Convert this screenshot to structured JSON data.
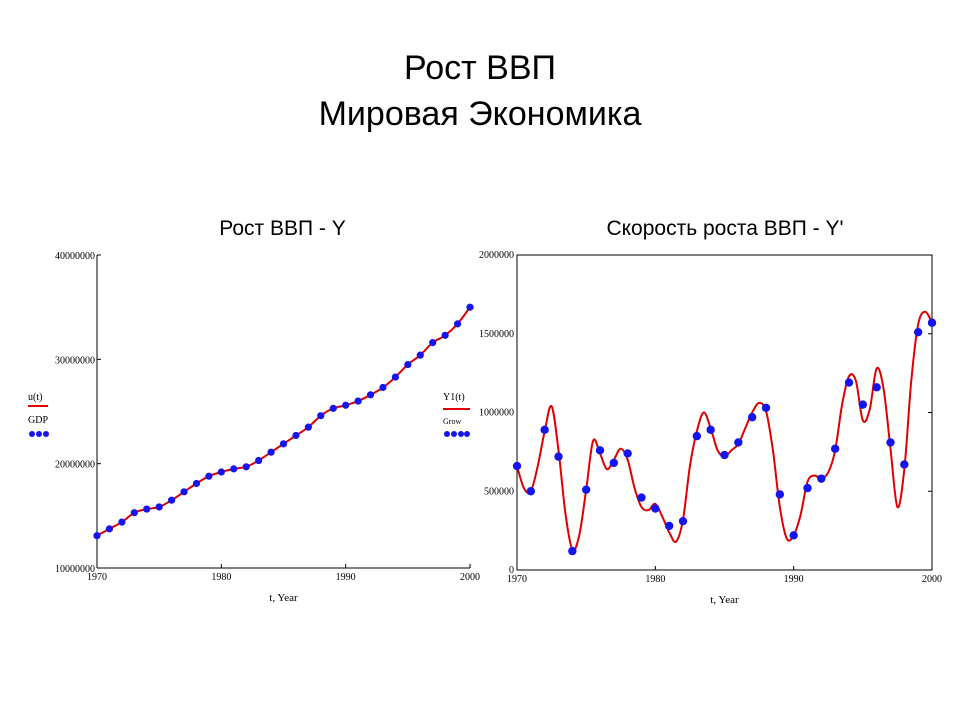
{
  "slide": {
    "title_line1": "Рост ВВП",
    "title_line2": "Мировая Экономика"
  },
  "colors": {
    "line": "#e00000",
    "points": "#1414f0",
    "axis": "#000000"
  },
  "chart_data": [
    {
      "type": "line",
      "title": "Рост ВВП - Y",
      "xlabel": "t, Year",
      "xlim": [
        1970,
        2000
      ],
      "ylim": [
        10000000,
        40000000
      ],
      "x_ticks": [
        "1970",
        "1980",
        "1990",
        "2000"
      ],
      "y_ticks": [
        "10000000",
        "20000000",
        "30000000",
        "40000000"
      ],
      "legend_left": {
        "line_name": "u(t)",
        "points_name": "GDP"
      },
      "legend_right": {
        "line_name": "Y1(t)",
        "points_name": "Grow"
      },
      "x": [
        1970,
        1971,
        1972,
        1973,
        1974,
        1975,
        1976,
        1977,
        1978,
        1979,
        1980,
        1981,
        1982,
        1983,
        1984,
        1985,
        1986,
        1987,
        1988,
        1989,
        1990,
        1991,
        1992,
        1993,
        1994,
        1995,
        1996,
        1997,
        1998,
        1999,
        2000
      ],
      "series": [
        {
          "kind": "line",
          "values": [
            13100000,
            13750000,
            14400000,
            15300000,
            15650000,
            15850000,
            16500000,
            17300000,
            18100000,
            18800000,
            19200000,
            19500000,
            19700000,
            20300000,
            21100000,
            21900000,
            22700000,
            23500000,
            24600000,
            25300000,
            25600000,
            26000000,
            26600000,
            27300000,
            28300000,
            29500000,
            30400000,
            31600000,
            32300000,
            33400000,
            35000000
          ]
        },
        {
          "kind": "points",
          "values": [
            13100000,
            13750000,
            14400000,
            15300000,
            15650000,
            15850000,
            16500000,
            17300000,
            18100000,
            18800000,
            19200000,
            19500000,
            19700000,
            20300000,
            21100000,
            21900000,
            22700000,
            23500000,
            24600000,
            25300000,
            25600000,
            26000000,
            26600000,
            27300000,
            28300000,
            29500000,
            30400000,
            31600000,
            32300000,
            33400000,
            35000000
          ]
        }
      ]
    },
    {
      "type": "line",
      "title": "Скорость роста ВВП - Y'",
      "xlabel": "t, Year",
      "xlim": [
        1970,
        2000
      ],
      "ylim": [
        0,
        2000000
      ],
      "x_ticks": [
        "1970",
        "1980",
        "1990",
        "2000"
      ],
      "y_ticks": [
        "0",
        "500000",
        "1000000",
        "1500000",
        "2000000"
      ],
      "line_x": [
        1970,
        1970.5,
        1971,
        1971.5,
        1972,
        1972.5,
        1973,
        1973.5,
        1974,
        1974.5,
        1975,
        1975.5,
        1976,
        1976.5,
        1977,
        1977.5,
        1978,
        1978.5,
        1979,
        1979.5,
        1980,
        1980.5,
        1981,
        1981.5,
        1982,
        1982.5,
        1983,
        1983.5,
        1984,
        1984.5,
        1985,
        1985.5,
        1986,
        1986.5,
        1987,
        1987.5,
        1988,
        1988.5,
        1989,
        1989.5,
        1990,
        1990.5,
        1991,
        1991.5,
        1992,
        1992.5,
        1993,
        1993.5,
        1994,
        1994.5,
        1995,
        1995.5,
        1996,
        1996.5,
        1997,
        1997.5,
        1998,
        1998.5,
        1999,
        1999.5,
        2000
      ],
      "line_y": [
        660000,
        520000,
        500000,
        660000,
        880000,
        1040000,
        760000,
        360000,
        130000,
        220000,
        510000,
        820000,
        740000,
        640000,
        700000,
        770000,
        700000,
        520000,
        400000,
        380000,
        420000,
        340000,
        240000,
        180000,
        320000,
        660000,
        880000,
        1000000,
        900000,
        760000,
        720000,
        760000,
        800000,
        900000,
        1000000,
        1060000,
        1010000,
        760000,
        400000,
        200000,
        220000,
        350000,
        560000,
        600000,
        580000,
        620000,
        760000,
        1050000,
        1230000,
        1200000,
        950000,
        1020000,
        1280000,
        1150000,
        770000,
        400000,
        640000,
        1200000,
        1560000,
        1640000,
        1570000
      ],
      "points_x": [
        1970,
        1971,
        1972,
        1973,
        1974,
        1975,
        1976,
        1977,
        1978,
        1979,
        1980,
        1981,
        1982,
        1983,
        1984,
        1985,
        1986,
        1987,
        1988,
        1989,
        1990,
        1991,
        1992,
        1993,
        1994,
        1995,
        1996,
        1997,
        1998,
        1999,
        2000
      ],
      "points_y": [
        660000,
        500000,
        890000,
        720000,
        120000,
        510000,
        760000,
        680000,
        740000,
        460000,
        390000,
        280000,
        310000,
        850000,
        890000,
        730000,
        810000,
        970000,
        1030000,
        480000,
        220000,
        520000,
        580000,
        770000,
        1190000,
        1050000,
        1160000,
        810000,
        670000,
        1510000,
        1570000
      ]
    }
  ]
}
